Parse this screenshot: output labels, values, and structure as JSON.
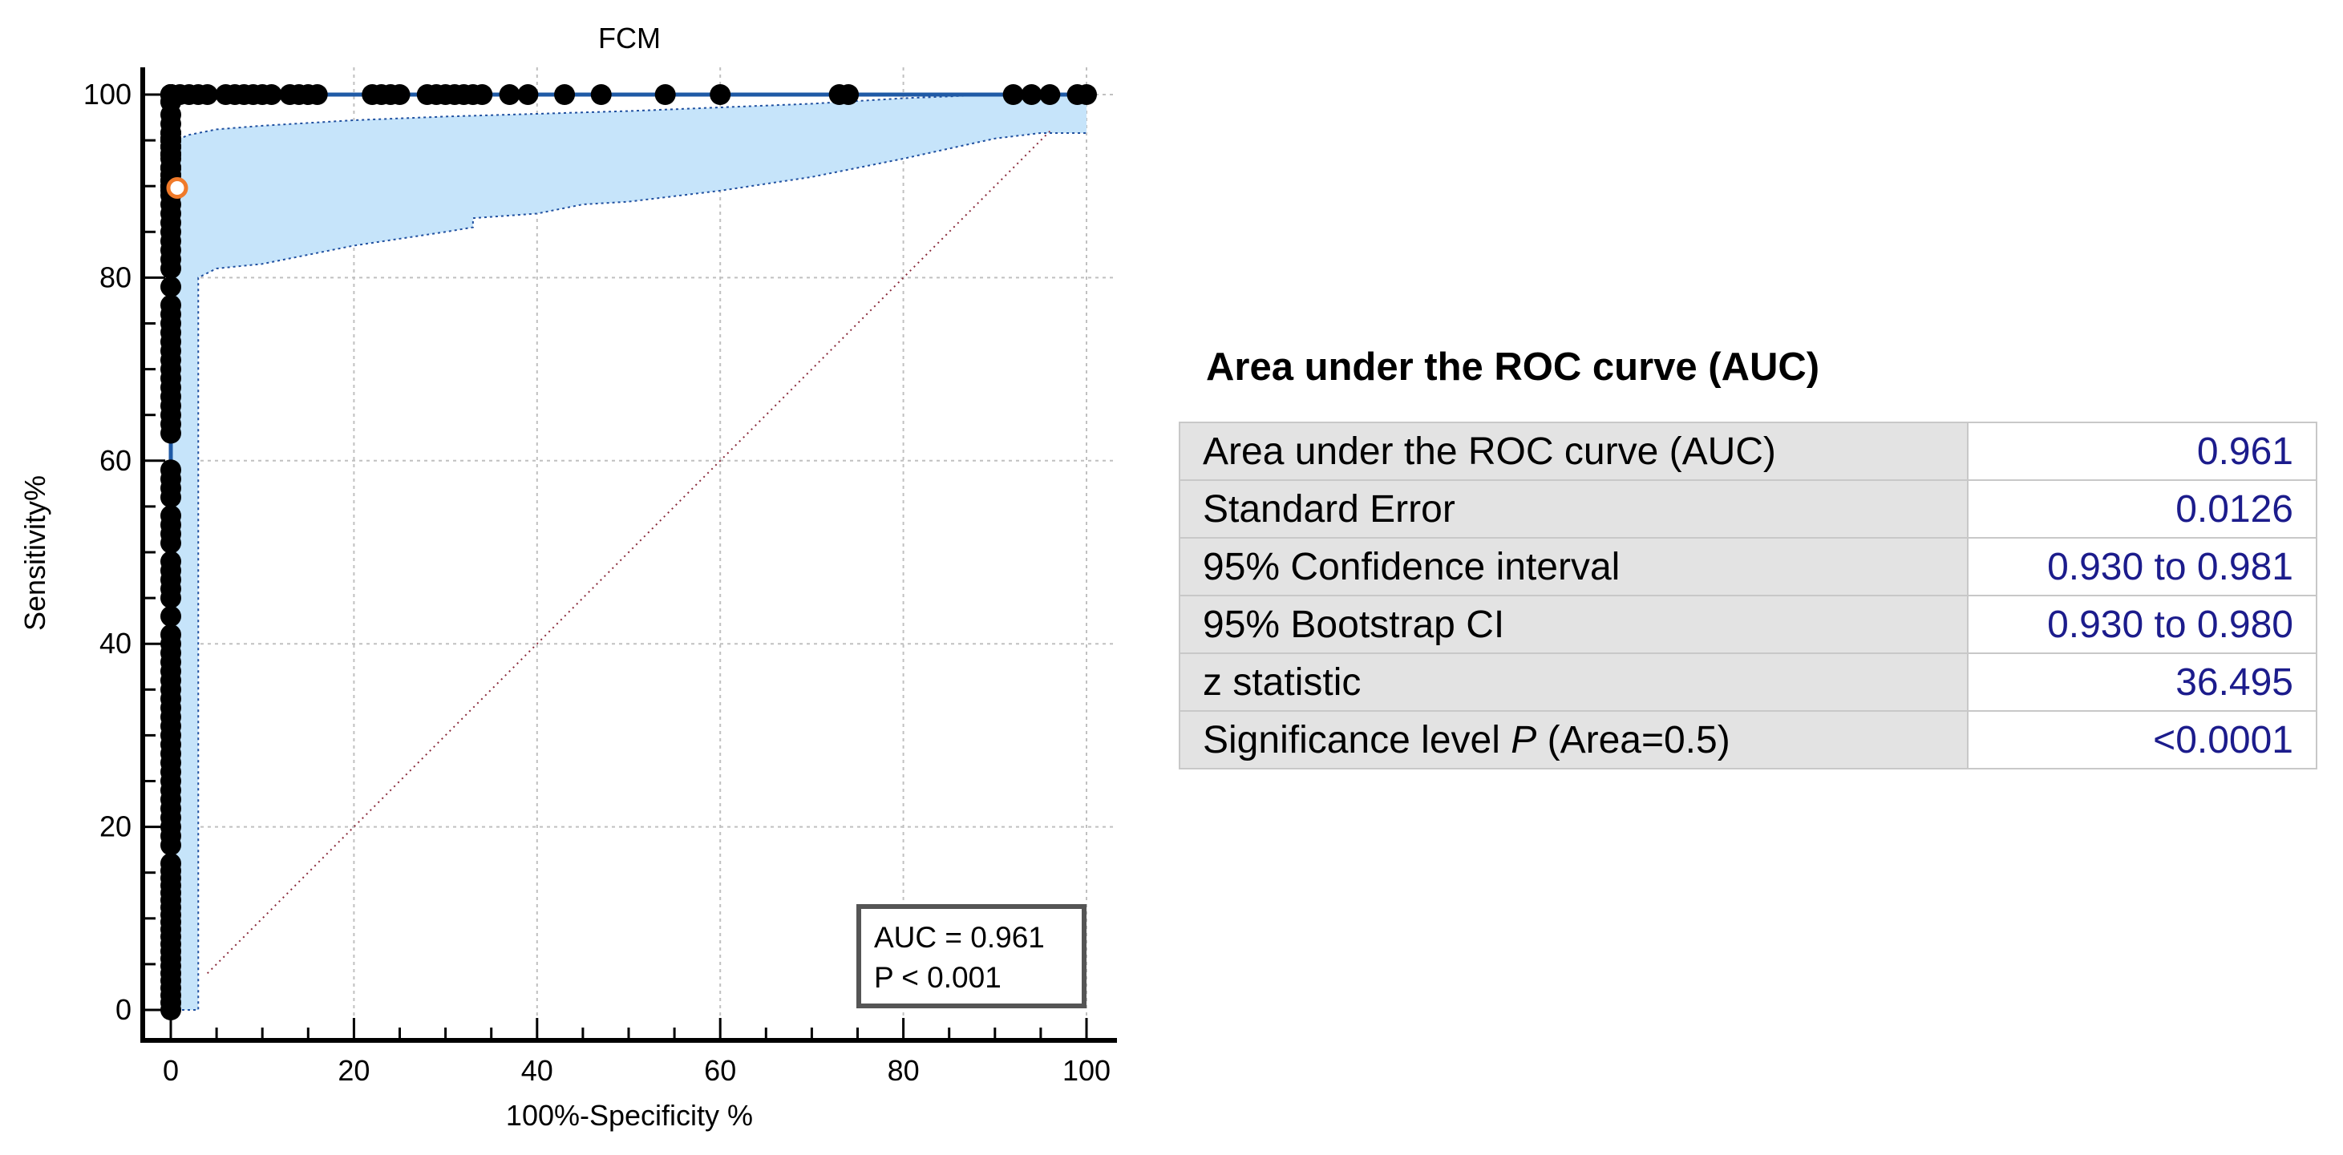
{
  "chart_data": {
    "type": "line",
    "title": "FCM",
    "xlabel": "100%-Specificity %",
    "ylabel": "Sensitivity%",
    "xlim": [
      -3,
      103
    ],
    "ylim": [
      -3,
      103
    ],
    "xticks": [
      0,
      20,
      40,
      60,
      80,
      100
    ],
    "yticks": [
      0,
      20,
      40,
      60,
      80,
      100
    ],
    "grid": true,
    "roc_points": {
      "x": [
        0,
        0,
        0,
        0,
        0,
        0,
        0,
        0,
        0,
        0,
        0,
        0,
        0,
        0,
        0,
        0,
        0,
        0,
        0,
        0,
        0,
        0,
        0,
        0,
        0,
        0,
        0,
        0,
        0,
        0,
        0,
        0,
        0,
        0,
        0,
        0,
        0,
        0,
        0,
        0,
        0,
        0,
        0,
        0,
        0,
        0,
        0,
        0,
        0,
        0,
        0,
        0,
        0,
        0,
        0,
        0,
        0,
        0,
        0,
        0,
        0,
        0,
        0,
        0,
        0,
        0,
        0,
        0,
        0,
        0,
        0,
        0,
        0,
        0,
        0,
        0,
        0,
        0,
        0,
        0,
        0,
        0,
        0,
        0,
        0,
        0,
        0,
        0,
        0,
        0,
        0,
        0,
        0,
        0,
        0,
        0,
        0,
        0,
        0,
        0,
        0,
        0,
        0,
        0,
        0,
        0,
        0,
        0,
        0,
        0,
        0,
        0,
        0,
        0,
        0,
        0,
        0,
        0,
        0,
        0,
        0,
        0,
        0,
        0,
        0,
        0,
        0,
        0,
        0,
        0,
        0,
        1,
        2,
        3,
        4,
        6,
        7,
        8,
        9,
        10,
        11,
        13,
        14,
        15,
        16,
        22,
        23,
        24,
        25,
        28,
        29,
        30,
        31,
        32,
        33,
        34,
        37,
        39,
        43,
        47,
        54,
        60,
        73,
        74,
        92,
        94,
        96,
        99,
        100
      ],
      "y": [
        0,
        0.8,
        1.6,
        2.4,
        3.2,
        4.0,
        4.8,
        5.6,
        6.4,
        7.2,
        8.0,
        8.8,
        9.6,
        10.4,
        11.2,
        12.0,
        12.8,
        13.6,
        14.4,
        15.2,
        16.0,
        18.0,
        19.0,
        20.0,
        21.0,
        22.0,
        23.0,
        24.0,
        25.0,
        26.0,
        27.0,
        28.0,
        29.0,
        30.0,
        31.0,
        32.0,
        33.0,
        34.0,
        35.0,
        36.0,
        37.0,
        38.0,
        39.0,
        40.0,
        41.0,
        43.0,
        45.0,
        46.0,
        47.0,
        48.0,
        49.0,
        51.0,
        52.0,
        53.0,
        54.0,
        56.0,
        57.0,
        58.0,
        59.0,
        63.0,
        64.0,
        65.0,
        66.0,
        67.0,
        68.0,
        69.0,
        70.0,
        71.0,
        72.0,
        73.0,
        74.0,
        75.0,
        76.0,
        77.0,
        79.0,
        81.0,
        82.0,
        83.0,
        84.0,
        85.0,
        86.0,
        87.0,
        88.0,
        89.0,
        89.5,
        90.0,
        90.0,
        90.0,
        90.6,
        90.6,
        90.6,
        91.2,
        91.2,
        92.0,
        92.0,
        92.0,
        92.0,
        93.0,
        93.5,
        93.5,
        93.5,
        94.3,
        94.3,
        94.3,
        94.3,
        95.0,
        95.0,
        95.0,
        95.2,
        95.2,
        95.8,
        95.8,
        96.8,
        97.8,
        99.2,
        99.2,
        100,
        100,
        100,
        100,
        100,
        100,
        100,
        100,
        100,
        100,
        100,
        100,
        100,
        100,
        100,
        100,
        100,
        100,
        100,
        100,
        100,
        100,
        100,
        100,
        100,
        100,
        100,
        100,
        100,
        100,
        100,
        100,
        100,
        100,
        100,
        100,
        100,
        100,
        100,
        100,
        100,
        100,
        100,
        100,
        100,
        100,
        100,
        100,
        100,
        100,
        100,
        100,
        100
      ]
    },
    "ci_band": {
      "upper": {
        "x": [
          0,
          0.5,
          2,
          5,
          10,
          20,
          30,
          40,
          50,
          60,
          70,
          75,
          80,
          85,
          90,
          95,
          100
        ],
        "y": [
          88,
          95,
          95.6,
          96.2,
          96.6,
          97.2,
          97.6,
          97.9,
          98.2,
          98.6,
          99.0,
          99.3,
          99.6,
          99.8,
          100,
          100,
          100
        ]
      },
      "lower": {
        "x": [
          0,
          3,
          3,
          4,
          5,
          10,
          15,
          20,
          30,
          33,
          33,
          40,
          45,
          50,
          60,
          70,
          80,
          90,
          95,
          100
        ],
        "y": [
          0,
          0,
          80,
          80.5,
          81,
          81.5,
          82.5,
          83.5,
          85,
          85.5,
          86.5,
          87,
          88,
          88.3,
          89.5,
          91,
          93,
          95.2,
          95.8,
          95.8
        ]
      }
    },
    "optimal_point": {
      "x": 0.7,
      "y": 89.8
    },
    "reference_line": {
      "x": [
        4,
        96
      ],
      "y": [
        4,
        96
      ]
    },
    "legend_box": [
      "AUC = 0.961",
      "P < 0.001"
    ],
    "colors": {
      "curve": "#1f5aa6",
      "band": "#c6e4fa",
      "band_edge": "#2050a0",
      "points": "#000000",
      "optimal": "#f07a2a",
      "reference": "#8a2a3a",
      "grid": "#c0c0c0"
    }
  },
  "auc_panel": {
    "heading": "Area under the ROC curve (AUC)",
    "rows": [
      {
        "label": "Area under the ROC curve (AUC)",
        "value": "0.961"
      },
      {
        "label": "Standard Error",
        "value": "0.0126"
      },
      {
        "label": "95% Confidence interval",
        "value": "0.930 to 0.981"
      },
      {
        "label": "95% Bootstrap CI",
        "value": "0.930 to 0.980"
      },
      {
        "label": "z statistic",
        "value": "36.495"
      }
    ],
    "significance": {
      "label_pre": "Significance level",
      "label_italic": "P",
      "label_post": "(Area=0.5)",
      "value": "<0.0001"
    }
  }
}
